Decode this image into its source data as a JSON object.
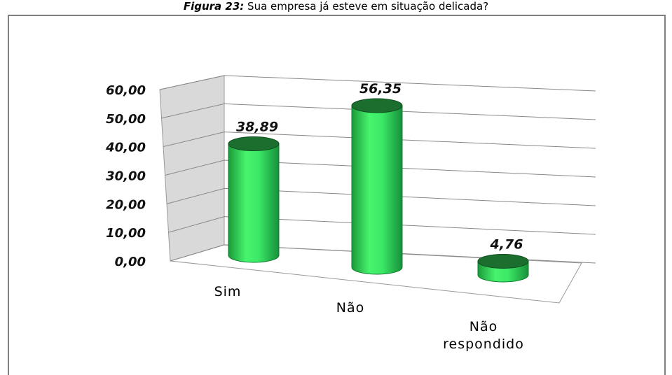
{
  "chart_data": {
    "type": "bar3d",
    "title_label": "Figura 23:",
    "title": "Sua empresa já esteve em situação delicada?",
    "categories": [
      "Sim",
      "Não",
      "Não respondido"
    ],
    "values": [
      38.89,
      56.35,
      4.76
    ],
    "value_labels": [
      "38,89",
      "56,35",
      "4,76"
    ],
    "color": "#3ff06a",
    "ylim": [
      0,
      60
    ],
    "yticks": [
      {
        "value": 0,
        "label": "0,00"
      },
      {
        "value": 10,
        "label": "10,00"
      },
      {
        "value": 20,
        "label": "20,00"
      },
      {
        "value": 30,
        "label": "30,00"
      },
      {
        "value": 40,
        "label": "40,00"
      },
      {
        "value": 50,
        "label": "50,00"
      },
      {
        "value": 60,
        "label": "60,00"
      }
    ],
    "grid": true
  }
}
